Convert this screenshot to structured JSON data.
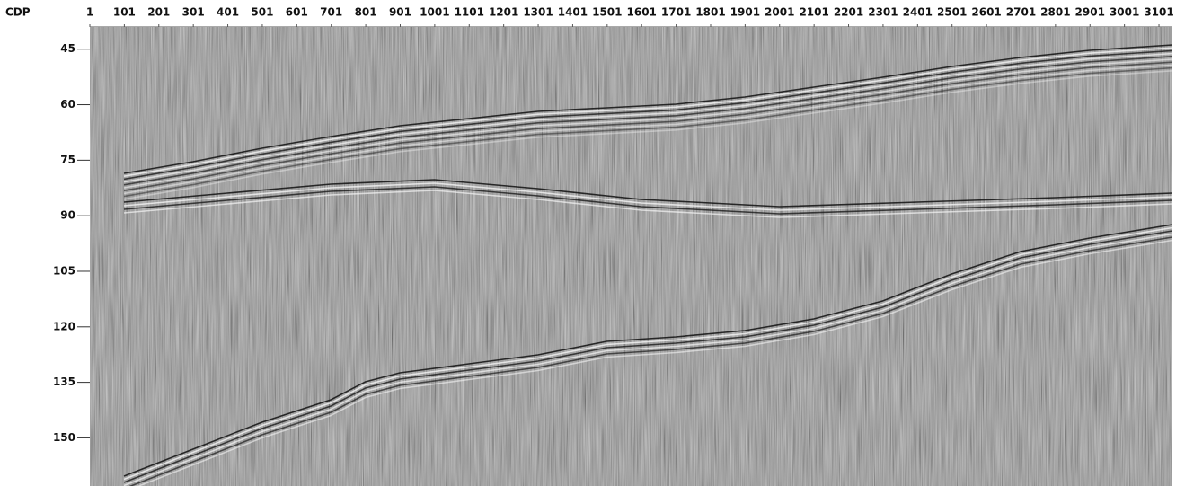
{
  "chart_data": {
    "type": "seismic-section",
    "x_label": "CDP",
    "xlim": [
      1,
      3140
    ],
    "xticks": [
      1,
      101,
      201,
      301,
      401,
      501,
      601,
      701,
      801,
      901,
      1001,
      1101,
      1201,
      1301,
      1401,
      1501,
      1601,
      1701,
      1801,
      1901,
      2001,
      2101,
      2201,
      2301,
      2401,
      2501,
      2601,
      2701,
      2801,
      2901,
      3001,
      3101
    ],
    "ylim": [
      39,
      163
    ],
    "yticks": [
      45,
      60,
      75,
      90,
      105,
      120,
      135,
      150
    ],
    "y_inverted": true
  }
}
